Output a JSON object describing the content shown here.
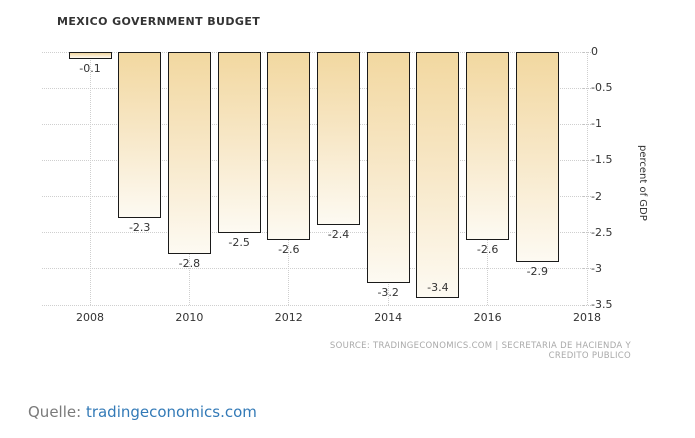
{
  "chart_data": {
    "type": "bar",
    "title": "MEXICO GOVERNMENT BUDGET",
    "categories": [
      2008,
      2009,
      2010,
      2011,
      2012,
      2013,
      2014,
      2015,
      2016,
      2017
    ],
    "values": [
      -0.1,
      -2.3,
      -2.8,
      -2.5,
      -2.6,
      -2.4,
      -3.2,
      -3.4,
      -2.6,
      -2.9
    ],
    "bar_labels": [
      "-0.1",
      "-2.3",
      "-2.8",
      "-2.5",
      "-2.6",
      "-2.4",
      "-3.2",
      "-3.4",
      "-2.6",
      "-2.9"
    ],
    "xlabel": "",
    "ylabel": "percent of GDP",
    "ylim": [
      -3.5,
      0
    ],
    "yticks": [
      "0",
      "-0.5",
      "-1",
      "-1.5",
      "-2",
      "-2.5",
      "-3",
      "-3.5"
    ],
    "xticks": [
      "2008",
      "2010",
      "2012",
      "2014",
      "2016",
      "2018"
    ],
    "grid": true,
    "legend": false,
    "bar_color_top": "#f2d8a0",
    "bar_color_bottom": "#fdfaf2",
    "bar_border_color": "#1a1a1a",
    "grid_color": "#cfcfcf"
  },
  "source_line": "SOURCE: TRADINGECONOMICS.COM  |  SECRETARIA DE HACIENDA Y CREDITO PUBLICO",
  "footer": {
    "prefix": "Quelle: ",
    "link": "tradingeconomics.com"
  },
  "colors": {
    "text": "#333333",
    "source_text": "#a9a9a9",
    "footer_text": "#7a7a7a",
    "link": "#337ab7",
    "background": "#ffffff"
  }
}
